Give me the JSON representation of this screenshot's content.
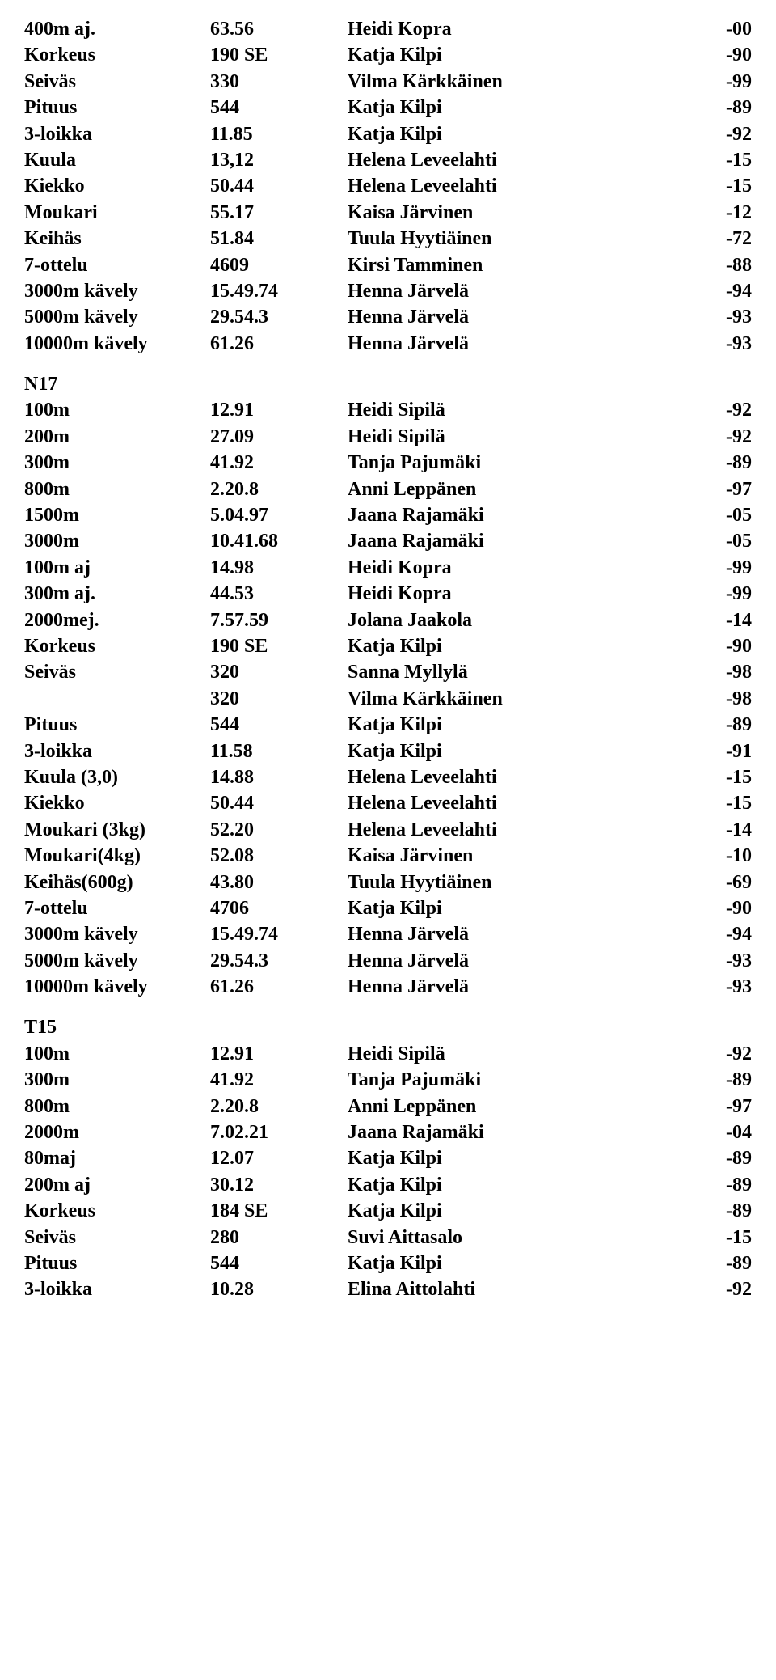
{
  "sections": [
    {
      "header": null,
      "rows": [
        {
          "c1": "400m aj.",
          "c2": "63.56",
          "c3": "Heidi Kopra",
          "c4": "-00"
        },
        {
          "c1": "Korkeus",
          "c2": "190 SE",
          "c3": "Katja Kilpi",
          "c4": "-90"
        },
        {
          "c1": "Seiväs",
          "c2": "330",
          "c3": "Vilma Kärkkäinen",
          "c4": "-99"
        },
        {
          "c1": "Pituus",
          "c2": "544",
          "c3": "Katja Kilpi",
          "c4": "-89"
        },
        {
          "c1": "3-loikka",
          "c2": "11.85",
          "c3": "Katja Kilpi",
          "c4": "-92"
        },
        {
          "c1": "Kuula",
          "c2": "13,12",
          "c3": "Helena Leveelahti",
          "c4": "-15"
        },
        {
          "c1": "Kiekko",
          "c2": "50.44",
          "c3": "Helena Leveelahti",
          "c4": "-15"
        },
        {
          "c1": "Moukari",
          "c2": "55.17",
          "c3": "Kaisa Järvinen",
          "c4": "-12"
        },
        {
          "c1": "Keihäs",
          "c2": "51.84",
          "c3": "Tuula Hyytiäinen",
          "c4": "-72"
        },
        {
          "c1": "7-ottelu",
          "c2": "4609",
          "c3": "Kirsi Tamminen",
          "c4": "-88"
        },
        {
          "c1": "3000m kävely",
          "c2": "15.49.74",
          "c3": "Henna Järvelä",
          "c4": "-94"
        },
        {
          "c1": "5000m kävely",
          "c2": "29.54.3",
          "c3": "Henna Järvelä",
          "c4": "-93"
        },
        {
          "c1": "10000m kävely",
          "c2": "61.26",
          "c3": "Henna Järvelä",
          "c4": "-93"
        }
      ]
    },
    {
      "header": "N17",
      "rows": [
        {
          "c1": "100m",
          "c2": "12.91",
          "c3": "Heidi Sipilä",
          "c4": "-92"
        },
        {
          "c1": "200m",
          "c2": "27.09",
          "c3": "Heidi Sipilä",
          "c4": "-92"
        },
        {
          "c1": "300m",
          "c2": "41.92",
          "c3": "Tanja Pajumäki",
          "c4": "-89"
        },
        {
          "c1": "800m",
          "c2": "2.20.8",
          "c3": "Anni Leppänen",
          "c4": "-97"
        },
        {
          "c1": "1500m",
          "c2": "5.04.97",
          "c3": "Jaana Rajamäki",
          "c4": "-05"
        },
        {
          "c1": "3000m",
          "c2": "10.41.68",
          "c3": "Jaana Rajamäki",
          "c4": "-05"
        },
        {
          "c1": "100m aj",
          "c2": "14.98",
          "c3": "Heidi Kopra",
          "c4": "-99"
        },
        {
          "c1": "300m aj.",
          "c2": "44.53",
          "c3": "Heidi Kopra",
          "c4": "-99"
        },
        {
          "c1": "2000mej.",
          "c2": "7.57.59",
          "c3": "Jolana Jaakola",
          "c4": "-14"
        },
        {
          "c1": "Korkeus",
          "c2": "190 SE",
          "c3": "Katja Kilpi",
          "c4": "-90"
        },
        {
          "c1": "Seiväs",
          "c2": "320",
          "c3": "Sanna Myllylä",
          "c4": "-98"
        },
        {
          "c1": "",
          "c2": "320",
          "c3": "Vilma Kärkkäinen",
          "c4": "-98"
        },
        {
          "c1": "Pituus",
          "c2": "544",
          "c3": "Katja Kilpi",
          "c4": "-89"
        },
        {
          "c1": "3-loikka",
          "c2": "11.58",
          "c3": "Katja Kilpi",
          "c4": "-91"
        },
        {
          "c1": "Kuula (3,0)",
          "c2": "14.88",
          "c3": "Helena Leveelahti",
          "c4": "-15"
        },
        {
          "c1": "Kiekko",
          "c2": "50.44",
          "c3": "Helena Leveelahti",
          "c4": "-15"
        },
        {
          "c1": "Moukari (3kg)",
          "c2": "52.20",
          "c3": "Helena Leveelahti",
          "c4": "-14"
        },
        {
          "c1": "Moukari(4kg)",
          "c2": "52.08",
          "c3": "Kaisa Järvinen",
          "c4": "-10"
        },
        {
          "c1": "Keihäs(600g)",
          "c2": "43.80",
          "c3": "Tuula Hyytiäinen",
          "c4": "-69"
        },
        {
          "c1": "7-ottelu",
          "c2": "4706",
          "c3": "Katja Kilpi",
          "c4": "-90"
        },
        {
          "c1": "3000m kävely",
          "c2": "15.49.74",
          "c3": "Henna Järvelä",
          "c4": "-94"
        },
        {
          "c1": "5000m kävely",
          "c2": "29.54.3",
          "c3": "Henna Järvelä",
          "c4": "-93"
        },
        {
          "c1": "10000m kävely",
          "c2": "61.26",
          "c3": "Henna Järvelä",
          "c4": "-93"
        }
      ]
    },
    {
      "header": "T15",
      "rows": [
        {
          "c1": "100m",
          "c2": "12.91",
          "c3": "Heidi Sipilä",
          "c4": "-92"
        },
        {
          "c1": "300m",
          "c2": "41.92",
          "c3": "Tanja Pajumäki",
          "c4": "-89"
        },
        {
          "c1": "800m",
          "c2": "2.20.8",
          "c3": "Anni Leppänen",
          "c4": "-97"
        },
        {
          "c1": "2000m",
          "c2": "7.02.21",
          "c3": "Jaana Rajamäki",
          "c4": "-04"
        },
        {
          "c1": "80maj",
          "c2": "12.07",
          "c3": "Katja Kilpi",
          "c4": "-89"
        },
        {
          "c1": "200m aj",
          "c2": "30.12",
          "c3": "Katja Kilpi",
          "c4": "-89"
        },
        {
          "c1": "Korkeus",
          "c2": "184 SE",
          "c3": "Katja Kilpi",
          "c4": "-89"
        },
        {
          "c1": "Seiväs",
          "c2": "280",
          "c3": "Suvi Aittasalo",
          "c4": "-15"
        },
        {
          "c1": "Pituus",
          "c2": "544",
          "c3": "Katja Kilpi",
          "c4": "-89"
        },
        {
          "c1": "3-loikka",
          "c2": "10.28",
          "c3": "Elina Aittolahti",
          "c4": "-92"
        }
      ]
    }
  ]
}
